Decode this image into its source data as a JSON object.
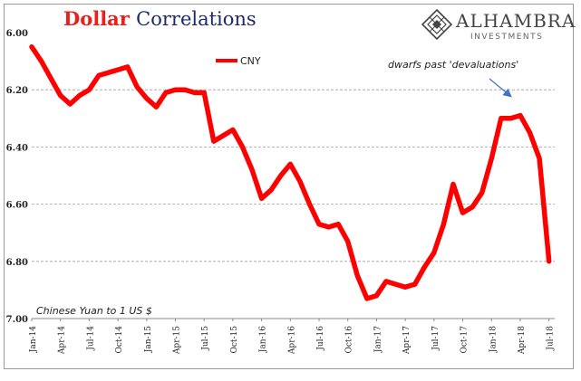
{
  "title": {
    "word1": "Dollar",
    "word2": "Correlations"
  },
  "logo": {
    "name": "ALHAMBRA",
    "sub": "INVESTMENTS"
  },
  "colors": {
    "series": "#ff0000",
    "title_red": "#e8211b",
    "title_blue": "#1f2a6b",
    "grid": "#a0a0a0"
  },
  "chart_data": {
    "type": "line",
    "y_label_note": "Chinese Yuan to 1 US $",
    "annotation": "dwarfs past 'devaluations'",
    "ylim": [
      7.0,
      6.0
    ],
    "y_inverted": true,
    "y_ticks": [
      "6.00",
      "6.20",
      "6.40",
      "6.60",
      "6.80",
      "7.00"
    ],
    "x_ticks": [
      "Jan-14",
      "Apr-14",
      "Jul-14",
      "Oct-14",
      "Jan-15",
      "Apr-15",
      "Jul-15",
      "Oct-15",
      "Jan-16",
      "Apr-16",
      "Jul-16",
      "Oct-16",
      "Jan-17",
      "Apr-17",
      "Jul-17",
      "Oct-17",
      "Jan-18",
      "Apr-18",
      "Jul-18"
    ],
    "grid": true,
    "legend_position": "top-left",
    "series": [
      {
        "name": "CNY",
        "x": [
          "2014-01",
          "2014-02",
          "2014-03",
          "2014-04",
          "2014-05",
          "2014-06",
          "2014-07",
          "2014-08",
          "2014-09",
          "2014-10",
          "2014-11",
          "2014-12",
          "2015-01",
          "2015-02",
          "2015-03",
          "2015-04",
          "2015-05",
          "2015-06",
          "2015-07",
          "2015-08",
          "2015-09",
          "2015-10",
          "2015-11",
          "2015-12",
          "2016-01",
          "2016-02",
          "2016-03",
          "2016-04",
          "2016-05",
          "2016-06",
          "2016-07",
          "2016-08",
          "2016-09",
          "2016-10",
          "2016-11",
          "2016-12",
          "2017-01",
          "2017-02",
          "2017-03",
          "2017-04",
          "2017-05",
          "2017-06",
          "2017-07",
          "2017-08",
          "2017-09",
          "2017-10",
          "2017-11",
          "2017-12",
          "2018-01",
          "2018-02",
          "2018-03",
          "2018-04",
          "2018-05",
          "2018-06",
          "2018-07"
        ],
        "values": [
          6.05,
          6.1,
          6.16,
          6.22,
          6.25,
          6.22,
          6.2,
          6.15,
          6.14,
          6.13,
          6.12,
          6.19,
          6.23,
          6.26,
          6.21,
          6.2,
          6.2,
          6.21,
          6.21,
          6.38,
          6.36,
          6.34,
          6.4,
          6.48,
          6.58,
          6.55,
          6.5,
          6.46,
          6.52,
          6.6,
          6.67,
          6.68,
          6.67,
          6.73,
          6.85,
          6.93,
          6.92,
          6.87,
          6.88,
          6.89,
          6.88,
          6.82,
          6.77,
          6.67,
          6.53,
          6.63,
          6.61,
          6.56,
          6.44,
          6.3,
          6.3,
          6.29,
          6.35,
          6.44,
          6.8
        ]
      }
    ]
  }
}
